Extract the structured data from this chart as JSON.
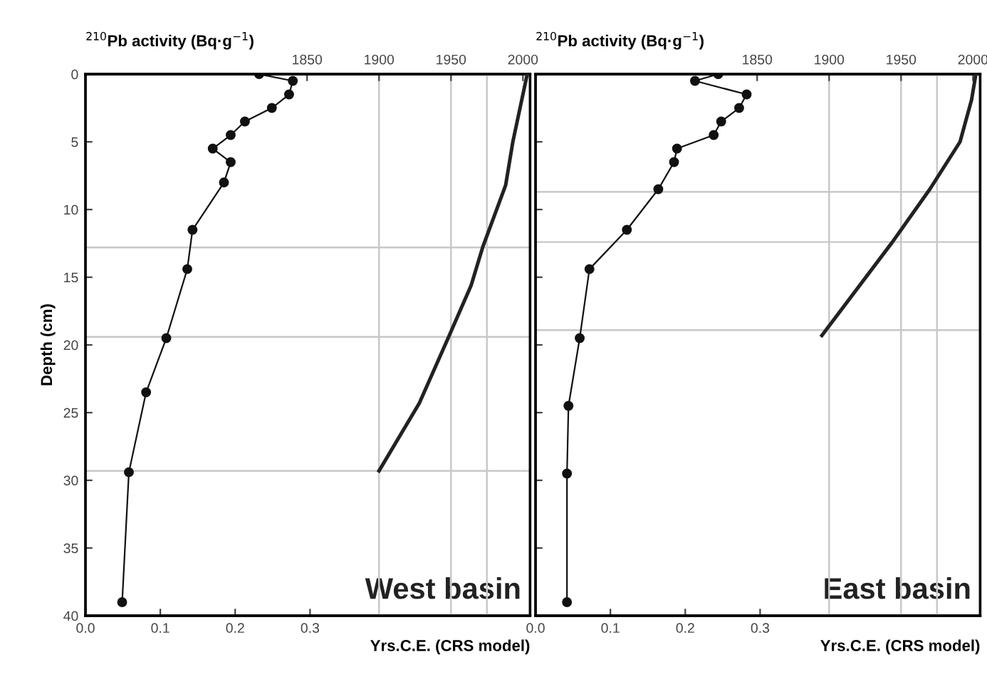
{
  "chart_data": [
    {
      "type": "line",
      "xlabel": "Yrs.C.E. (CRS model)",
      "x2label": "$^{210}$Pb activity (Bq·g$^{−1}$)",
      "ylabel": "Depth (cm)",
      "xlim": [
        0,
        0.594
      ],
      "xticks": [
        {
          "value": 0,
          "label": "0.0"
        },
        0.1,
        0.2,
        0.3
      ],
      "x2lim": [
        1696,
        2005
      ],
      "x2ticks": [
        1850,
        1900,
        1950,
        2000
      ],
      "ylim": [
        40,
        0
      ],
      "yticks": [
        0,
        5,
        10,
        15,
        20,
        25,
        30,
        35,
        40
      ],
      "series": [
        {
          "marker": "circle",
          "color": "#111111",
          "x": [
            0.232,
            0.277,
            0.272,
            0.249,
            0.213,
            0.194,
            0.17,
            0.194,
            0.185,
            0.143,
            0.136,
            0.108,
            0.081,
            0.058,
            0.049
          ],
          "values": [
            0,
            0.5,
            1.5,
            2.5,
            3.5,
            4.5,
            5.5,
            6.5,
            8,
            11.5,
            14.4,
            19.5,
            23.5,
            29.4,
            39
          ]
        },
        {
          "marker": "none",
          "axis": "x2",
          "color": "#222222",
          "x": [
            2003,
            1998,
            1993,
            1988,
            1972,
            1964,
            1948,
            1928,
            1900
          ],
          "values": [
            0,
            2.5,
            5,
            8.2,
            12.8,
            15.6,
            19.5,
            24.3,
            29.3
          ]
        }
      ],
      "ref_lines": [
        {
          "axis": "y",
          "value": 12.8,
          "color": "#c8c8c8"
        },
        {
          "axis": "y",
          "value": 19.4,
          "color": "#c8c8c8"
        },
        {
          "axis": "y",
          "value": 29.3,
          "color": "#c8c8c8"
        },
        {
          "axis": "x2",
          "value": 1900,
          "color": "#c8c8c8"
        },
        {
          "axis": "x2",
          "value": 1950,
          "color": "#c8c8c8"
        },
        {
          "axis": "x2",
          "value": 1975,
          "color": "#c8c8c8"
        }
      ],
      "annotations": [
        "West basin"
      ]
    },
    {
      "type": "line",
      "xlabel": "Yrs.C.E. (CRS model)",
      "x2label": "$^{210}$Pb activity (Bq·g$^{−1}$)",
      "tick_labels": "x",
      "xlim": [
        0,
        0.594
      ],
      "xticks": [
        {
          "value": 0,
          "label": "0.0"
        },
        0.1,
        0.2,
        0.3
      ],
      "x2lim": [
        1696,
        2005
      ],
      "x2ticks": [
        1850,
        1900,
        1950,
        2000
      ],
      "ylim": [
        40,
        0
      ],
      "yticks": [
        0,
        5,
        10,
        15,
        20,
        25,
        30,
        35,
        40
      ],
      "series": [
        {
          "marker": "circle",
          "color": "#111111",
          "x": [
            0.244,
            0.213,
            0.282,
            0.272,
            0.248,
            0.238,
            0.189,
            0.185,
            0.164,
            0.122,
            0.072,
            0.059,
            0.044,
            0.042,
            0.042
          ],
          "values": [
            0,
            0.5,
            1.5,
            2.5,
            3.5,
            4.5,
            5.5,
            6.5,
            8.5,
            11.5,
            14.4,
            19.5,
            24.5,
            29.5,
            39
          ]
        },
        {
          "marker": "none",
          "axis": "x2",
          "color": "#222222",
          "x": [
            2002,
            1999,
            1991,
            1970,
            1944,
            1895
          ],
          "values": [
            0,
            1.9,
            5,
            8.5,
            12.4,
            19.3
          ]
        }
      ],
      "ref_lines": [
        {
          "axis": "y",
          "value": 8.7,
          "color": "#c8c8c8"
        },
        {
          "axis": "y",
          "value": 12.4,
          "color": "#c8c8c8"
        },
        {
          "axis": "y",
          "value": 18.9,
          "color": "#c8c8c8"
        },
        {
          "axis": "x2",
          "value": 1900,
          "color": "#c8c8c8"
        },
        {
          "axis": "x2",
          "value": 1950,
          "color": "#c8c8c8"
        },
        {
          "axis": "x2",
          "value": 1975,
          "color": "#c8c8c8"
        }
      ],
      "annotations": [
        "East basin"
      ]
    }
  ]
}
